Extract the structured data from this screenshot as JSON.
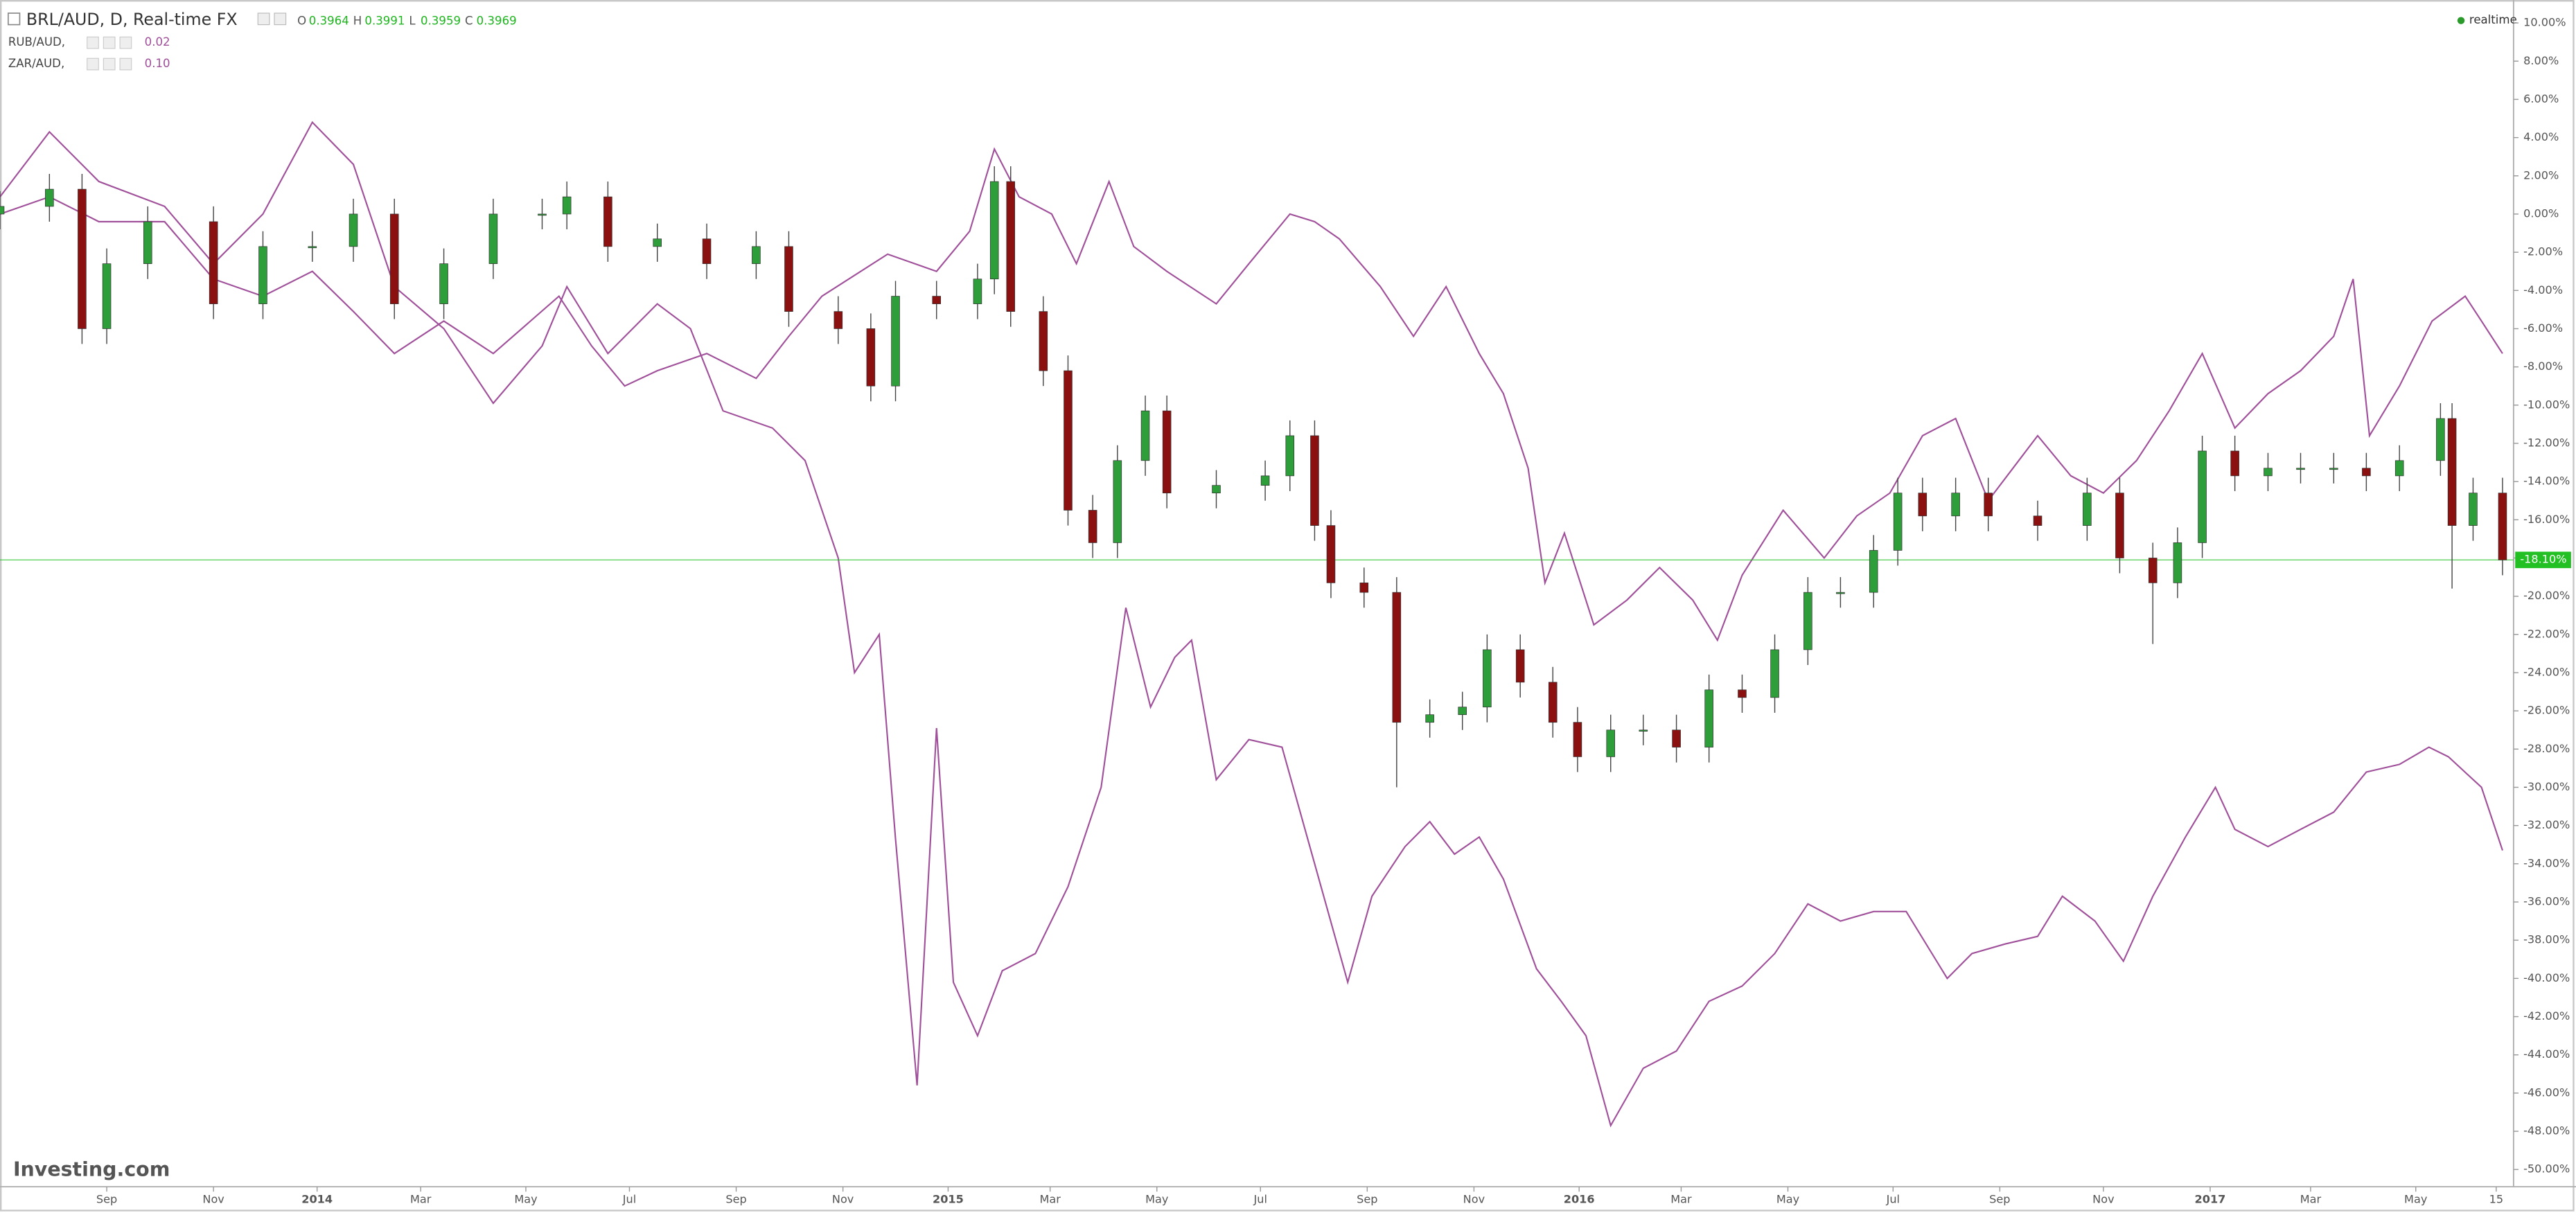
{
  "chart_data": {
    "type": "candlestick",
    "title": "BRL/AUD, D, Real-time FX",
    "quote": [
      {
        "name": "O",
        "value": 0.3964
      },
      {
        "name": "H",
        "value": 0.3991
      },
      {
        "name": "L",
        "value": 0.3959
      },
      {
        "name": "C",
        "value": 0.3969
      }
    ],
    "status": "realtime",
    "brand": "Investing.com",
    "color_up": "#2e9e3a",
    "color_down": "#8b1010",
    "x": [
      0,
      0.94,
      1.56,
      2.03,
      2.81,
      4.06,
      5.0,
      5.94,
      6.72,
      7.5,
      8.44,
      9.38,
      10.31,
      10.78,
      11.56,
      12.5,
      13.44,
      14.38,
      15.0,
      15.94,
      16.56,
      17.03,
      17.81,
      18.59,
      18.91,
      19.22,
      19.84,
      20.31,
      20.78,
      21.25,
      21.78,
      22.19,
      23.13,
      24.06,
      24.53,
      25.0,
      25.31,
      25.94,
      26.56,
      27.19,
      27.81,
      28.28,
      28.91,
      29.53,
      30.0,
      30.63,
      31.25,
      31.88,
      32.5,
      33.13,
      33.75,
      34.38,
      35.0,
      35.63,
      36.09,
      36.56,
      37.19,
      37.81,
      38.75,
      39.69,
      40.31,
      40.94,
      41.41,
      41.88,
      42.5,
      43.13,
      43.75,
      44.38,
      45.0,
      45.63,
      46.41,
      46.63,
      47.03,
      47.59
    ],
    "open": [
      0,
      0.4,
      1.3,
      -6,
      -2.6,
      -0.4,
      -4.7,
      -1.7,
      -1.7,
      0,
      -4.7,
      -2.6,
      0,
      0,
      0.9,
      -1.7,
      -1.3,
      -2.6,
      -1.7,
      -5.1,
      -6,
      -9,
      -4.3,
      -4.7,
      -3.4,
      1.7,
      -5.1,
      -8.2,
      -15.5,
      -17.2,
      -12.9,
      -10.3,
      -14.6,
      -14.2,
      -13.7,
      -11.6,
      -16.3,
      -19.3,
      -19.8,
      -26.6,
      -26.2,
      -25.8,
      -22.8,
      -24.5,
      -26.6,
      -28.4,
      -27,
      -27,
      -27.9,
      -24.9,
      -25.3,
      -22.8,
      -19.8,
      -19.8,
      -17.6,
      -14.6,
      -15.8,
      -14.6,
      -15.8,
      -16.3,
      -14.6,
      -18,
      -19.3,
      -17.2,
      -12.4,
      -13.7,
      -13.3,
      -13.3,
      -13.3,
      -13.7,
      -12.9,
      -10.7,
      -16.3,
      -14.6
    ],
    "high": [
      1.2,
      2.1,
      2.1,
      -1.8,
      0.4,
      0.4,
      -0.9,
      -0.9,
      0.8,
      0.8,
      -1.8,
      0.8,
      0.8,
      1.7,
      1.7,
      -0.5,
      -0.5,
      -0.9,
      -0.9,
      -4.3,
      -5.2,
      -3.5,
      -3.5,
      -2.6,
      2.5,
      2.5,
      -4.3,
      -7.4,
      -14.7,
      -12.1,
      -9.5,
      -9.5,
      -13.4,
      -12.9,
      -10.8,
      -10.8,
      -15.5,
      -18.5,
      -19,
      -25.4,
      -25,
      -22,
      -22,
      -23.7,
      -25.8,
      -26.2,
      -26.2,
      -26.2,
      -24.1,
      -24.1,
      -22,
      -19,
      -19,
      -16.8,
      -13.8,
      -13.8,
      -13.8,
      -13.8,
      -15,
      -13.8,
      -13.8,
      -17.2,
      -16.4,
      -11.6,
      -11.6,
      -12.5,
      -12.5,
      -12.5,
      -12.5,
      -12.1,
      -9.9,
      -9.9,
      -13.8,
      -13.8
    ],
    "low": [
      -0.8,
      -0.4,
      -6.8,
      -6.8,
      -3.4,
      -5.5,
      -5.5,
      -2.5,
      -2.5,
      -5.5,
      -5.5,
      -3.4,
      -0.8,
      -0.8,
      -2.5,
      -2.5,
      -3.4,
      -3.4,
      -5.9,
      -6.8,
      -9.8,
      -9.8,
      -5.5,
      -5.5,
      -4.2,
      -5.9,
      -9,
      -16.3,
      -18,
      -18,
      -13.7,
      -15.4,
      -15.4,
      -15,
      -14.5,
      -17.1,
      -20.1,
      -20.6,
      -30,
      -27.4,
      -27,
      -26.6,
      -25.3,
      -27.4,
      -29.2,
      -29.2,
      -27.8,
      -28.7,
      -28.7,
      -26.1,
      -26.1,
      -23.6,
      -20.6,
      -20.6,
      -18.4,
      -16.6,
      -16.6,
      -16.6,
      -17.1,
      -17.1,
      -18.8,
      -22.5,
      -20.1,
      -18,
      -14.5,
      -14.5,
      -14.1,
      -14.1,
      -14.5,
      -14.5,
      -13.7,
      -19.6,
      -17.1,
      -18.9
    ],
    "close": [
      0.4,
      1.3,
      -6,
      -2.6,
      -0.4,
      -4.7,
      -1.7,
      -1.7,
      0,
      -4.7,
      -2.6,
      0,
      0,
      0.9,
      -1.7,
      -1.3,
      -2.6,
      -1.7,
      -5.1,
      -6,
      -9,
      -4.3,
      -4.7,
      -3.4,
      1.7,
      -5.1,
      -8.2,
      -15.5,
      -17.2,
      -12.9,
      -10.3,
      -14.6,
      -14.2,
      -13.7,
      -11.6,
      -16.3,
      -19.3,
      -19.8,
      -26.6,
      -26.2,
      -25.8,
      -22.8,
      -24.5,
      -26.6,
      -28.4,
      -27,
      -27,
      -27.9,
      -24.9,
      -25.3,
      -22.8,
      -19.8,
      -19.8,
      -17.6,
      -14.6,
      -15.8,
      -14.6,
      -15.8,
      -16.3,
      -14.6,
      -18,
      -19.3,
      -17.2,
      -12.4,
      -13.7,
      -13.3,
      -13.3,
      -13.3,
      -13.7,
      -12.9,
      -10.7,
      -16.3,
      -14.6,
      -18.1
    ],
    "last_value": {
      "value": -18.1,
      "label": "-18.10%"
    },
    "last_color": "#22c022",
    "overlays": [
      {
        "name": "RUB/AUD,",
        "value": 0.02,
        "color": "#a0509a",
        "x": [
          0,
          0.94,
          1.88,
          3.13,
          4.06,
          5.0,
          5.94,
          6.72,
          7.5,
          8.44,
          9.38,
          10.31,
          10.78,
          11.56,
          12.5,
          13.13,
          13.75,
          14.69,
          15.31,
          15.94,
          16.25,
          16.72,
          17.03,
          17.44,
          17.81,
          18.13,
          18.59,
          19.06,
          19.69,
          20.31,
          20.94,
          21.41,
          21.88,
          22.34,
          22.66,
          23.13,
          23.75,
          24.38,
          25.0,
          25.63,
          26.09,
          26.72,
          27.19,
          27.66,
          28.13,
          28.59,
          29.22,
          29.69,
          30.16,
          30.63,
          31.25,
          31.88,
          32.5,
          33.13,
          33.75,
          34.38,
          35.0,
          35.63,
          36.25,
          37.03,
          37.5,
          38.13,
          38.75,
          39.22,
          39.84,
          40.38,
          40.94,
          41.56,
          42.13,
          42.5,
          43.13,
          43.75,
          44.38,
          45.0,
          45.63,
          46.19,
          46.56,
          47.19,
          47.59
        ],
        "values": [
          0.9,
          4.3,
          1.7,
          0.4,
          -2.6,
          0,
          4.8,
          2.6,
          -3.8,
          -6,
          -9.9,
          -6.9,
          -3.8,
          -7.3,
          -4.7,
          -6,
          -10.3,
          -11.2,
          -12.9,
          -18,
          -24,
          -22,
          -32.7,
          -45.6,
          -26.9,
          -40.2,
          -43,
          -39.6,
          -38.7,
          -35.2,
          -30,
          -20.6,
          -25.8,
          -23.2,
          -22.3,
          -29.6,
          -27.5,
          -27.9,
          -34,
          -40.2,
          -35.7,
          -33.1,
          -31.8,
          -33.5,
          -32.6,
          -34.8,
          -39.5,
          -41.2,
          -43,
          -47.7,
          -44.7,
          -43.8,
          -41.2,
          -40.4,
          -38.7,
          -36.1,
          -37,
          -36.5,
          -36.5,
          -40,
          -38.7,
          -38.2,
          -37.8,
          -35.7,
          -37,
          -39.1,
          -35.7,
          -32.6,
          -30,
          -32.2,
          -33.1,
          -32.2,
          -31.3,
          -29.2,
          -28.8,
          -27.9,
          -28.4,
          -30,
          -33.3
        ]
      },
      {
        "name": "ZAR/AUD,",
        "value": 0.1,
        "value_label": "0.10",
        "color": "#a0509a",
        "x": [
          0,
          0.94,
          1.88,
          3.13,
          4.06,
          5.0,
          5.94,
          6.72,
          7.5,
          8.44,
          9.38,
          10.63,
          11.25,
          11.88,
          12.5,
          13.44,
          14.38,
          15.0,
          15.63,
          16.88,
          17.81,
          18.44,
          18.91,
          19.38,
          20.0,
          20.47,
          21.09,
          21.56,
          22.19,
          23.13,
          23.75,
          24.53,
          25.0,
          25.47,
          26.25,
          26.88,
          27.5,
          28.13,
          28.59,
          29.06,
          29.38,
          29.75,
          30.31,
          30.94,
          31.56,
          32.19,
          32.66,
          33.13,
          33.91,
          34.69,
          35.31,
          35.94,
          36.56,
          37.19,
          37.81,
          38.75,
          39.38,
          40.0,
          40.63,
          41.25,
          41.88,
          42.5,
          43.13,
          43.75,
          44.38,
          44.75,
          45.06,
          45.63,
          46.25,
          46.88,
          47.19,
          47.59
        ],
        "values": [
          0,
          0.9,
          -0.4,
          -0.4,
          -3.4,
          -4.3,
          -3,
          -5.1,
          -7.3,
          -5.6,
          -7.3,
          -4.3,
          -6.9,
          -9,
          -8.2,
          -7.3,
          -8.6,
          -6.4,
          -4.3,
          -2.1,
          -3,
          -0.9,
          3.4,
          0.9,
          0,
          -2.6,
          1.7,
          -1.7,
          -3,
          -4.7,
          -2.6,
          0,
          -0.4,
          -1.3,
          -3.8,
          -6.4,
          -3.8,
          -7.3,
          -9.4,
          -13.3,
          -19.3,
          -16.7,
          -21.5,
          -20.2,
          -18.5,
          -20.2,
          -22.3,
          -18.9,
          -15.5,
          -18,
          -15.8,
          -14.6,
          -11.6,
          -10.7,
          -15,
          -11.6,
          -13.7,
          -14.6,
          -12.9,
          -10.3,
          -7.3,
          -11.2,
          -9.4,
          -8.2,
          -6.4,
          -3.4,
          -11.6,
          -9,
          -5.6,
          -4.3,
          -5.6,
          -7.3
        ]
      }
    ],
    "xlim": [
      0,
      47.8
    ],
    "xticks": [
      {
        "value": 2.03,
        "label": "Sep"
      },
      {
        "value": 4.06,
        "label": "Nov"
      },
      {
        "value": 6.03,
        "label": "2014"
      },
      {
        "value": 8.0,
        "label": "Mar"
      },
      {
        "value": 10.0,
        "label": "May"
      },
      {
        "value": 11.97,
        "label": "Jul"
      },
      {
        "value": 14.0,
        "label": "Sep"
      },
      {
        "value": 16.03,
        "label": "Nov"
      },
      {
        "value": 18.03,
        "label": "2015"
      },
      {
        "value": 19.97,
        "label": "Mar"
      },
      {
        "value": 22.0,
        "label": "May"
      },
      {
        "value": 23.97,
        "label": "Jul"
      },
      {
        "value": 26.0,
        "label": "Sep"
      },
      {
        "value": 28.03,
        "label": "Nov"
      },
      {
        "value": 30.03,
        "label": "2016"
      },
      {
        "value": 31.97,
        "label": "Mar"
      },
      {
        "value": 34.0,
        "label": "May"
      },
      {
        "value": 36.0,
        "label": "Jul"
      },
      {
        "value": 38.03,
        "label": "Sep"
      },
      {
        "value": 40.0,
        "label": "Nov"
      },
      {
        "value": 42.03,
        "label": "2017"
      },
      {
        "value": 43.94,
        "label": "Mar"
      },
      {
        "value": 45.94,
        "label": "May"
      },
      {
        "value": 47.47,
        "label": "15"
      }
    ],
    "ylim": [
      -50.9,
      11.2
    ],
    "yticks": [
      {
        "value": 10,
        "label": "10.00%"
      },
      {
        "value": 8,
        "label": "8.00%"
      },
      {
        "value": 6,
        "label": "6.00%"
      },
      {
        "value": 4,
        "label": "4.00%"
      },
      {
        "value": 2,
        "label": "2.00%"
      },
      {
        "value": 0,
        "label": "0.00%"
      },
      {
        "value": -2,
        "label": "-2.00%"
      },
      {
        "value": -4,
        "label": "-4.00%"
      },
      {
        "value": -6,
        "label": "-6.00%"
      },
      {
        "value": -8,
        "label": "-8.00%"
      },
      {
        "value": -10,
        "label": "-10.00%"
      },
      {
        "value": -12,
        "label": "-12.00%"
      },
      {
        "value": -14,
        "label": "-14.00%"
      },
      {
        "value": -16,
        "label": "-16.00%"
      },
      {
        "value": -18,
        "label": "-18.00%"
      },
      {
        "value": -20,
        "label": "-20.00%"
      },
      {
        "value": -22,
        "label": "-22.00%"
      },
      {
        "value": -24,
        "label": "-24.00%"
      },
      {
        "value": -26,
        "label": "-26.00%"
      },
      {
        "value": -28,
        "label": "-28.00%"
      },
      {
        "value": -30,
        "label": "-30.00%"
      },
      {
        "value": -32,
        "label": "-32.00%"
      },
      {
        "value": -34,
        "label": "-34.00%"
      },
      {
        "value": -36,
        "label": "-36.00%"
      },
      {
        "value": -38,
        "label": "-38.00%"
      },
      {
        "value": -40,
        "label": "-40.00%"
      },
      {
        "value": -42,
        "label": "-42.00%"
      },
      {
        "value": -44,
        "label": "-44.00%"
      },
      {
        "value": -46,
        "label": "-46.00%"
      },
      {
        "value": -48,
        "label": "-48.00%"
      },
      {
        "value": -50,
        "label": "-50.00%"
      }
    ]
  }
}
